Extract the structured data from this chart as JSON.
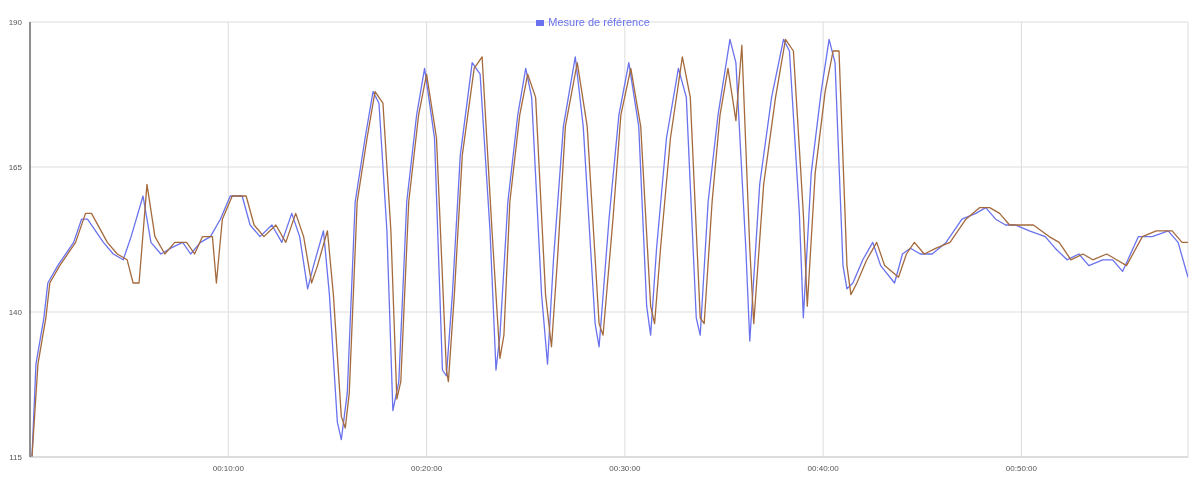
{
  "chart_data": {
    "type": "line",
    "xlim": [
      0,
      58.4
    ],
    "xticks": [
      {
        "value": 10,
        "label": "00:10:00"
      },
      {
        "value": 20,
        "label": "00:20:00"
      },
      {
        "value": 30,
        "label": "00:30:00"
      },
      {
        "value": 40,
        "label": "00:40:00"
      },
      {
        "value": 50,
        "label": "00:50:00"
      }
    ],
    "ylim": [
      115,
      190
    ],
    "yticks": [
      115,
      140,
      165,
      190
    ],
    "grid": true,
    "legend": "top",
    "marker": "none",
    "line_style": "solid",
    "series": [
      {
        "name": "Mesure de référence",
        "color": "#6a72ee",
        "x": [
          0.1,
          0.3,
          0.7,
          0.9,
          1.4,
          2.2,
          2.6,
          2.9,
          3.7,
          4.2,
          4.7,
          5.1,
          5.7,
          6.1,
          6.6,
          7.1,
          7.7,
          8.1,
          8.6,
          9.1,
          9.6,
          10.1,
          10.7,
          11.1,
          11.6,
          12.2,
          12.7,
          13.2,
          13.6,
          14.0,
          14.3,
          14.8,
          15.1,
          15.5,
          15.7,
          16.0,
          16.4,
          16.9,
          17.3,
          17.6,
          18.0,
          18.3,
          18.6,
          19.0,
          19.5,
          19.9,
          20.4,
          20.8,
          21.0,
          21.3,
          21.7,
          22.3,
          22.7,
          23.2,
          23.5,
          23.7,
          24.1,
          24.6,
          25.0,
          25.3,
          25.8,
          26.1,
          26.4,
          26.9,
          27.5,
          27.9,
          28.5,
          28.7,
          29.2,
          29.7,
          30.2,
          30.7,
          31.1,
          31.3,
          31.6,
          32.1,
          32.7,
          33.1,
          33.6,
          33.8,
          34.2,
          34.7,
          35.3,
          35.6,
          36.1,
          36.3,
          36.8,
          37.4,
          38.0,
          38.3,
          38.8,
          39.0,
          39.4,
          39.9,
          40.3,
          40.6,
          41.0,
          41.2,
          41.5,
          42.0,
          42.5,
          42.9,
          43.6,
          44.0,
          44.4,
          44.9,
          45.5,
          46.2,
          47.0,
          47.7,
          48.2,
          48.7,
          49.2,
          49.7,
          50.4,
          51.2,
          51.7,
          52.3,
          52.9,
          53.4,
          54.1,
          54.6,
          55.1,
          55.9,
          56.6,
          57.4,
          57.9,
          58.4
        ],
        "values": [
          115,
          131,
          139,
          145,
          148,
          152,
          156,
          156,
          152,
          150,
          149,
          153,
          160,
          152,
          150,
          151,
          152,
          150,
          152,
          153,
          156,
          160,
          160,
          155,
          153,
          155,
          152,
          157,
          153,
          144,
          148,
          154,
          143,
          121,
          118,
          126,
          159,
          170,
          178,
          176,
          154,
          123,
          128,
          159,
          174,
          182,
          170,
          130,
          129,
          143,
          167,
          183,
          181,
          154,
          130,
          136,
          159,
          174,
          182,
          177,
          143,
          131,
          149,
          172,
          184,
          172,
          138,
          134,
          156,
          174,
          183,
          172,
          141,
          136,
          151,
          170,
          182,
          177,
          139,
          136,
          159,
          174,
          187,
          183,
          151,
          135,
          162,
          177,
          187,
          185,
          157,
          139,
          164,
          178,
          187,
          183,
          148,
          144,
          145,
          149,
          152,
          148,
          145,
          150,
          151,
          150,
          150,
          152,
          156,
          157,
          158,
          156,
          155,
          155,
          154,
          153,
          151,
          149,
          150,
          148,
          149,
          149,
          147,
          153,
          153,
          154,
          152,
          146
        ]
      },
      {
        "color": "#a56a3c",
        "x": [
          0.1,
          0.4,
          0.8,
          1.0,
          1.5,
          2.3,
          2.8,
          3.1,
          3.9,
          4.4,
          4.9,
          5.2,
          5.5,
          5.9,
          6.3,
          6.8,
          7.3,
          7.9,
          8.3,
          8.7,
          9.2,
          9.4,
          9.7,
          10.2,
          10.9,
          11.3,
          11.8,
          12.4,
          12.9,
          13.4,
          13.8,
          14.2,
          14.5,
          15.0,
          15.3,
          15.7,
          15.9,
          16.1,
          16.5,
          17.0,
          17.4,
          17.8,
          18.2,
          18.5,
          18.7,
          19.1,
          19.6,
          20.0,
          20.5,
          21.0,
          21.1,
          21.4,
          21.8,
          22.4,
          22.8,
          23.3,
          23.7,
          23.9,
          24.2,
          24.7,
          25.1,
          25.5,
          26.0,
          26.3,
          26.6,
          27.0,
          27.6,
          28.1,
          28.7,
          28.9,
          29.4,
          29.8,
          30.3,
          30.8,
          31.3,
          31.5,
          31.8,
          32.3,
          32.9,
          33.3,
          33.8,
          34.0,
          34.4,
          34.8,
          35.2,
          35.6,
          35.9,
          36.3,
          36.5,
          37.0,
          37.6,
          38.1,
          38.5,
          39.0,
          39.2,
          39.6,
          40.1,
          40.5,
          40.8,
          41.2,
          41.4,
          41.7,
          42.2,
          42.7,
          43.1,
          43.8,
          44.2,
          44.6,
          45.1,
          45.7,
          46.4,
          47.2,
          47.9,
          48.4,
          48.9,
          49.4,
          49.9,
          50.6,
          51.4,
          51.9,
          52.5,
          53.1,
          53.6,
          54.3,
          54.8,
          55.3,
          56.1,
          56.8,
          57.6,
          58.1,
          58.4
        ],
        "values": [
          115,
          131,
          139,
          145,
          148,
          152,
          157,
          157,
          152,
          150,
          149,
          145,
          145,
          162,
          153,
          150,
          152,
          152,
          150,
          153,
          153,
          145,
          156,
          160,
          160,
          155,
          153,
          155,
          152,
          157,
          153,
          145,
          148,
          154,
          143,
          122,
          120,
          126,
          159,
          170,
          178,
          176,
          154,
          125,
          128,
          159,
          174,
          181,
          170,
          130,
          128,
          143,
          167,
          182,
          184,
          154,
          132,
          136,
          159,
          174,
          181,
          177,
          143,
          134,
          149,
          172,
          183,
          172,
          138,
          136,
          156,
          174,
          182,
          172,
          141,
          138,
          151,
          170,
          184,
          177,
          139,
          138,
          159,
          174,
          182,
          173,
          186,
          151,
          138,
          162,
          177,
          187,
          185,
          157,
          141,
          164,
          178,
          185,
          185,
          148,
          143,
          145,
          149,
          152,
          148,
          146,
          150,
          152,
          150,
          151,
          152,
          156,
          158,
          158,
          157,
          155,
          155,
          155,
          153,
          152,
          149,
          150,
          149,
          150,
          149,
          148,
          153,
          154,
          154,
          152,
          152
        ]
      }
    ]
  }
}
